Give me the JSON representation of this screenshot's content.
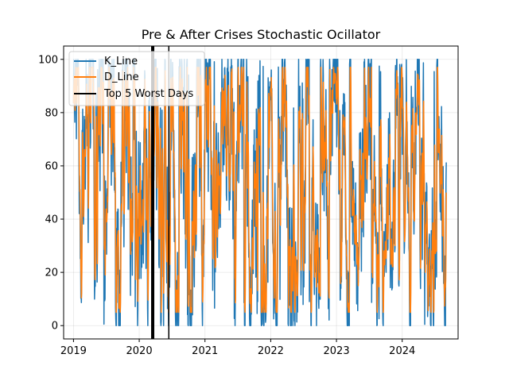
{
  "chart_data": {
    "type": "line",
    "title": "Pre & After Crises Stochastic Ocillator",
    "xlabel": "",
    "ylabel": "",
    "xlim": [
      2018.85,
      2024.85
    ],
    "ylim": [
      -5,
      105
    ],
    "x_ticks": [
      "2019",
      "2020",
      "2021",
      "2022",
      "2023",
      "2024"
    ],
    "y_ticks": [
      "0",
      "20",
      "40",
      "60",
      "80",
      "100"
    ],
    "grid": true,
    "legend_position": "top-left",
    "x_start": 2019.0,
    "x_end": 2024.67,
    "series": [
      {
        "name": "K_Line",
        "color": "#1f77b4",
        "min": 0,
        "max": 100
      },
      {
        "name": "D_Line",
        "color": "#ff7f0e",
        "min": 5,
        "max": 97
      }
    ],
    "vertical_lines": {
      "name": "Top 5 Worst Days",
      "color": "#000000",
      "x": [
        2020.19,
        2020.2,
        2020.21,
        2020.22,
        2020.45
      ]
    }
  }
}
